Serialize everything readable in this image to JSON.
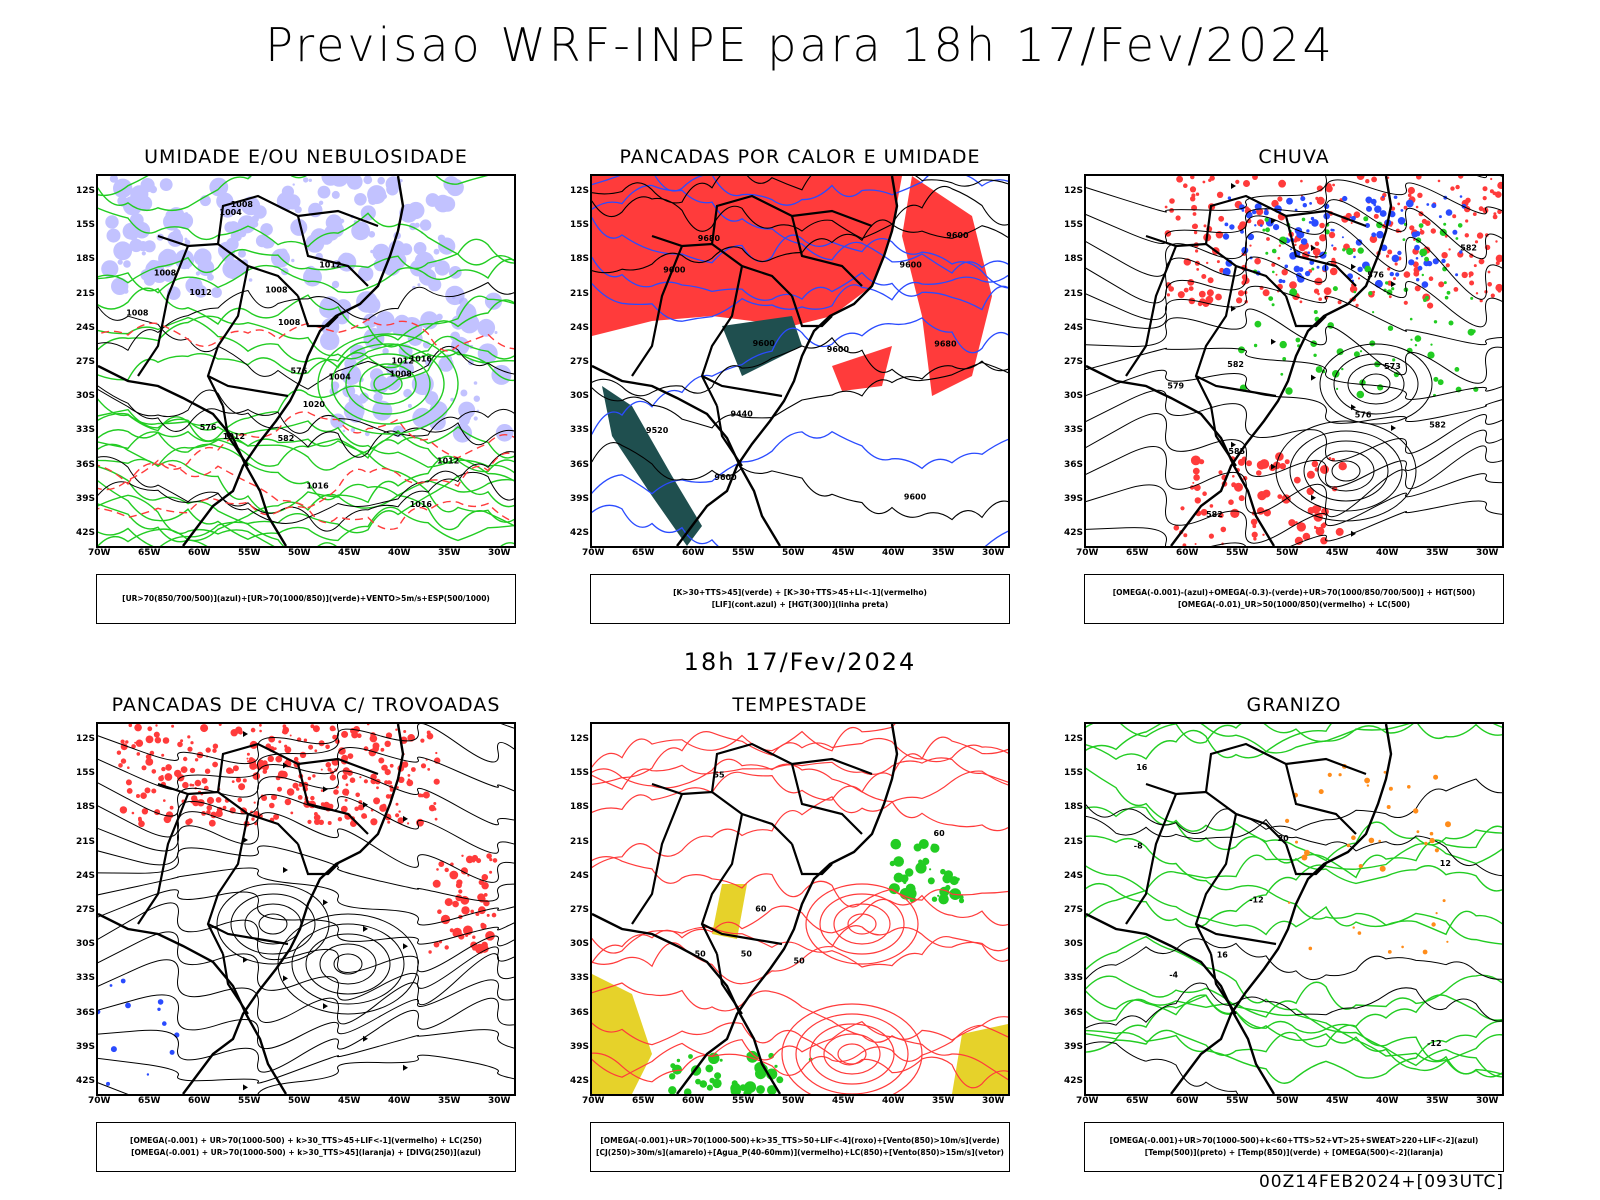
{
  "header": {
    "title": "Previsao WRF-INPE  para 18h 17/Fev/2024"
  },
  "middle": {
    "title": "18h 17/Fev/2024"
  },
  "footer": {
    "run": "00Z14FEB2024+[093UTC]"
  },
  "axes": {
    "lat_labels": [
      "12S",
      "15S",
      "18S",
      "21S",
      "24S",
      "27S",
      "30S",
      "33S",
      "36S",
      "39S",
      "42S"
    ],
    "lon_labels": [
      "70W",
      "65W",
      "60W",
      "55W",
      "50W",
      "45W",
      "40W",
      "35W",
      "30W"
    ]
  },
  "colors": {
    "red": "#ff3b3b",
    "green": "#22cc22",
    "blue": "#2a4bff",
    "lavender": "#b3b3ff",
    "darkteal": "#1f4f4f",
    "yellow": "#e6d22a",
    "orange": "#ff8c1a",
    "magenta": "#cc33cc"
  },
  "panels": [
    {
      "title": "UMIDADE E/OU NEBULOSIDADE",
      "legend": [
        "[UR>70(850/700/500)](azul)+[UR>70(1000/850)](verde)+VENTO>5m/s+ESP(500/1000)"
      ],
      "labels": [
        "1012",
        "1008",
        "1008",
        "1004",
        "1012",
        "1012",
        "1008",
        "1004",
        "1012",
        "1008",
        "1008",
        "1012",
        "1016",
        "1016",
        "1020",
        "1016",
        "1008",
        "576",
        "576",
        "582"
      ]
    },
    {
      "title": "PANCADAS POR CALOR E UMIDADE",
      "legend": [
        "[K>30+TTS>45](verde) + [K>30+TTS>45+LI<-1](vermelho)",
        "[LIF](cont.azul) + [HGT(300)](linha preta)"
      ],
      "labels": [
        "9680",
        "9680",
        "9600",
        "9600",
        "9520",
        "9600",
        "9600",
        "9600",
        "9440",
        "9600",
        "9600"
      ]
    },
    {
      "title": "CHUVA",
      "legend": [
        "[OMEGA(-0.001)-(azul)+OMEGA(-0.3)-(verde)+UR>70(1000/850/700/500)] + HGT(500)",
        "[OMEGA(-0.01)_UR>50(1000/850)(vermelho) + LC(500)"
      ],
      "labels": [
        "582",
        "576",
        "582",
        "585",
        "582",
        "576",
        "579",
        "582",
        "573"
      ]
    },
    {
      "title": "PANCADAS DE CHUVA C/ TROVOADAS",
      "legend": [
        "[OMEGA(-0.001) + UR>70(1000-500) + k>30_TTS>45+LIF<-1](vermelho) + LC(250)",
        "[OMEGA(-0.001) + UR>70(1000-500) + k>30_TTS>45](laranja) + [DIVG(250)](azul)"
      ],
      "labels": []
    },
    {
      "title": "TEMPESTADE",
      "legend": [
        "[OMEGA(-0.001)+UR>70(1000-500)+k>35_TTS>50+LIF<-4](roxo)+[Vento(850)>10m/s](verde)",
        "[CJ(250)>30m/s](amarelo)+[Agua_P(40-60mm)](vermelho)+LC(850)+[Vento(850)>15m/s](vetor)"
      ],
      "labels": [
        "50",
        "55",
        "50",
        "60",
        "50",
        "60"
      ]
    },
    {
      "title": "GRANIZO",
      "legend": [
        "[OMEGA(-0.001)+UR>70(1000-500)+k<60+TTS>52+VT>25+SWEAT>220+LIF<-2](azul)",
        "[Temp(500)](preto) + [Temp(850)](verde) + [OMEGA(500)<-2](laranja)"
      ],
      "labels": [
        "-12",
        "-8",
        "-4",
        "12",
        "16",
        "20",
        "-12",
        "16"
      ]
    }
  ]
}
